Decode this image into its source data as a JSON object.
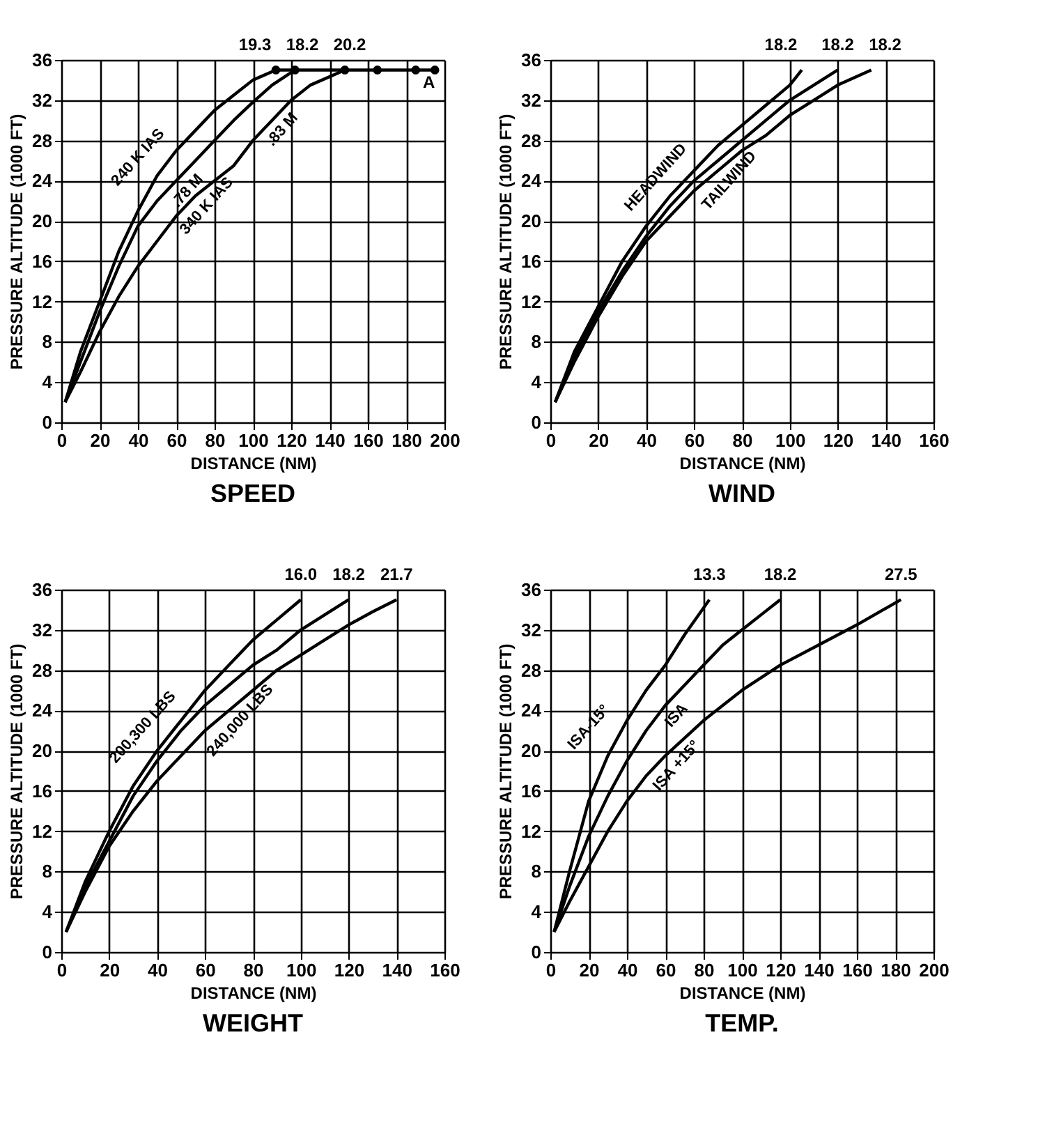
{
  "chart_data": [
    {
      "type": "line",
      "title": "SPEED",
      "xlabel": "DISTANCE (NM)",
      "ylabel": "PRESSURE ALTITUDE (1000 FT)",
      "xlim": [
        0,
        200
      ],
      "xticks": [
        0,
        20,
        40,
        60,
        80,
        100,
        120,
        140,
        160,
        180,
        200
      ],
      "ylim": [
        0,
        36
      ],
      "yticks": [
        0,
        4,
        8,
        12,
        16,
        20,
        24,
        28,
        32,
        36
      ],
      "grid": true,
      "line_style": "solid",
      "marker": "none",
      "series": [
        {
          "name": "240 K IAS",
          "color": "#000000",
          "x": [
            2,
            10,
            20,
            30,
            40,
            50,
            60,
            70,
            80,
            90,
            100,
            112
          ],
          "values": [
            2,
            7,
            12,
            17,
            21,
            24.5,
            27,
            29,
            31,
            32.5,
            34,
            35
          ]
        },
        {
          "name": ".78 M",
          "color": "#000000",
          "x": [
            2,
            10,
            20,
            30,
            40,
            50,
            60,
            70,
            80,
            90,
            100,
            110,
            122
          ],
          "values": [
            2,
            6,
            11,
            15.5,
            19.5,
            22,
            24,
            26,
            28,
            30,
            31.8,
            33.5,
            35
          ]
        },
        {
          "name": "340 K IAS",
          "color": "#000000",
          "x": [
            2,
            10,
            20,
            30,
            40,
            50,
            60,
            70,
            80,
            90,
            100,
            110,
            120,
            130,
            148
          ],
          "values": [
            2,
            5,
            9,
            12.5,
            15.5,
            18,
            20.5,
            22.5,
            24,
            25.5,
            28,
            30,
            32,
            33.5,
            35
          ]
        },
        {
          "color": "#000000",
          "marker": "circle",
          "x": [
            112,
            122,
            148,
            165,
            185,
            195
          ],
          "values": [
            35,
            35,
            35,
            35,
            35,
            35
          ]
        }
      ],
      "annotations": [
        {
          "text": "19.3",
          "x": 112,
          "y": 35
        },
        {
          "text": "18.2",
          "x": 122,
          "y": 35
        },
        {
          "text": "20.2",
          "x": 148,
          "y": 35
        },
        {
          "text": ".83 M",
          "x": 110,
          "y": 30
        },
        {
          "text": "A",
          "x": 195,
          "y": 35
        }
      ]
    },
    {
      "type": "line",
      "title": "WIND",
      "xlabel": "DISTANCE (NM)",
      "ylabel": "PRESSURE ALTITUDE (1000 FT)",
      "xlim": [
        0,
        160
      ],
      "xticks": [
        0,
        20,
        40,
        60,
        80,
        100,
        120,
        140,
        160
      ],
      "ylim": [
        0,
        36
      ],
      "yticks": [
        0,
        4,
        8,
        12,
        16,
        20,
        24,
        28,
        32,
        36
      ],
      "grid": true,
      "line_style": "solid",
      "marker": "none",
      "series": [
        {
          "name": "HEADWIND",
          "color": "#000000",
          "x": [
            2,
            10,
            20,
            30,
            40,
            50,
            60,
            70,
            80,
            90,
            100,
            105
          ],
          "values": [
            2,
            7,
            11.5,
            16,
            19.5,
            22.5,
            25,
            27.5,
            29.5,
            31.5,
            33.5,
            35
          ]
        },
        {
          "color": "#000000",
          "x": [
            2,
            10,
            20,
            30,
            40,
            50,
            60,
            70,
            80,
            90,
            100,
            110,
            120
          ],
          "values": [
            2,
            6.5,
            11,
            15,
            18.5,
            21.5,
            24,
            26,
            28,
            30,
            32,
            33.5,
            35
          ]
        },
        {
          "name": "TAILWIND",
          "color": "#000000",
          "x": [
            2,
            10,
            20,
            30,
            40,
            50,
            60,
            70,
            80,
            90,
            100,
            110,
            120,
            134
          ],
          "values": [
            2,
            6,
            10.5,
            14.5,
            18,
            20.5,
            23,
            25,
            27,
            28.5,
            30.5,
            32,
            33.5,
            35
          ]
        }
      ],
      "annotations": [
        {
          "text": "18.2",
          "x": 105,
          "y": 35
        },
        {
          "text": "18.2",
          "x": 120,
          "y": 35
        },
        {
          "text": "18.2",
          "x": 134,
          "y": 35
        }
      ]
    },
    {
      "type": "line",
      "title": "WEIGHT",
      "xlabel": "DISTANCE (NM)",
      "ylabel": "PRESSURE ALTITUDE (1000 FT)",
      "xlim": [
        0,
        160
      ],
      "xticks": [
        0,
        20,
        40,
        60,
        80,
        100,
        120,
        140,
        160
      ],
      "ylim": [
        0,
        36
      ],
      "yticks": [
        0,
        4,
        8,
        12,
        16,
        20,
        24,
        28,
        32,
        36
      ],
      "grid": true,
      "line_style": "solid",
      "marker": "none",
      "series": [
        {
          "name": "200,300 LBS",
          "color": "#000000",
          "x": [
            2,
            10,
            20,
            30,
            40,
            50,
            60,
            70,
            80,
            90,
            100
          ],
          "values": [
            2,
            7,
            12,
            16.5,
            20,
            23,
            26,
            28.5,
            31,
            33,
            35
          ]
        },
        {
          "color": "#000000",
          "x": [
            2,
            10,
            20,
            30,
            40,
            50,
            60,
            70,
            80,
            90,
            100,
            110,
            120
          ],
          "values": [
            2,
            6.5,
            11,
            15.5,
            19,
            22,
            24.5,
            26.5,
            28.5,
            30,
            32,
            33.5,
            35
          ]
        },
        {
          "name": "240,000 LBS",
          "color": "#000000",
          "x": [
            2,
            10,
            20,
            30,
            40,
            50,
            60,
            70,
            80,
            90,
            100,
            110,
            120,
            130,
            140
          ],
          "values": [
            2,
            6,
            10.5,
            14,
            17,
            19.5,
            22,
            24,
            26,
            28,
            29.5,
            31,
            32.5,
            33.8,
            35
          ]
        }
      ],
      "annotations": [
        {
          "text": "16.0",
          "x": 100,
          "y": 35
        },
        {
          "text": "18.2",
          "x": 120,
          "y": 35
        },
        {
          "text": "21.7",
          "x": 140,
          "y": 35
        }
      ]
    },
    {
      "type": "line",
      "title": "TEMP.",
      "xlabel": "DISTANCE (NM)",
      "ylabel": "PRESSURE ALTITUDE (1000 FT)",
      "xlim": [
        0,
        200
      ],
      "xticks": [
        0,
        20,
        40,
        60,
        80,
        100,
        120,
        140,
        160,
        180,
        200
      ],
      "ylim": [
        0,
        36
      ],
      "yticks": [
        0,
        4,
        8,
        12,
        16,
        20,
        24,
        28,
        32,
        36
      ],
      "grid": true,
      "line_style": "solid",
      "marker": "none",
      "series": [
        {
          "name": "ISA-15°",
          "color": "#000000",
          "x": [
            2,
            10,
            20,
            30,
            40,
            50,
            60,
            70,
            83
          ],
          "values": [
            2,
            8,
            15,
            19.5,
            23,
            26,
            28.5,
            31.5,
            35
          ]
        },
        {
          "name": "ISA",
          "color": "#000000",
          "x": [
            2,
            10,
            20,
            30,
            40,
            50,
            60,
            70,
            80,
            90,
            100,
            110,
            120
          ],
          "values": [
            2,
            6.5,
            11.5,
            15.5,
            19,
            22,
            24.5,
            26.5,
            28.5,
            30.5,
            32,
            33.5,
            35
          ]
        },
        {
          "name": "ISA +15°",
          "color": "#000000",
          "x": [
            2,
            10,
            20,
            30,
            40,
            50,
            60,
            80,
            100,
            120,
            140,
            160,
            183
          ],
          "values": [
            2,
            5,
            8.5,
            12,
            15,
            17.5,
            19.5,
            23,
            26,
            28.5,
            30.5,
            32.5,
            35
          ]
        }
      ],
      "annotations": [
        {
          "text": "13.3",
          "x": 83,
          "y": 35
        },
        {
          "text": "18.2",
          "x": 120,
          "y": 35
        },
        {
          "text": "27.5",
          "x": 183,
          "y": 35
        }
      ]
    }
  ]
}
